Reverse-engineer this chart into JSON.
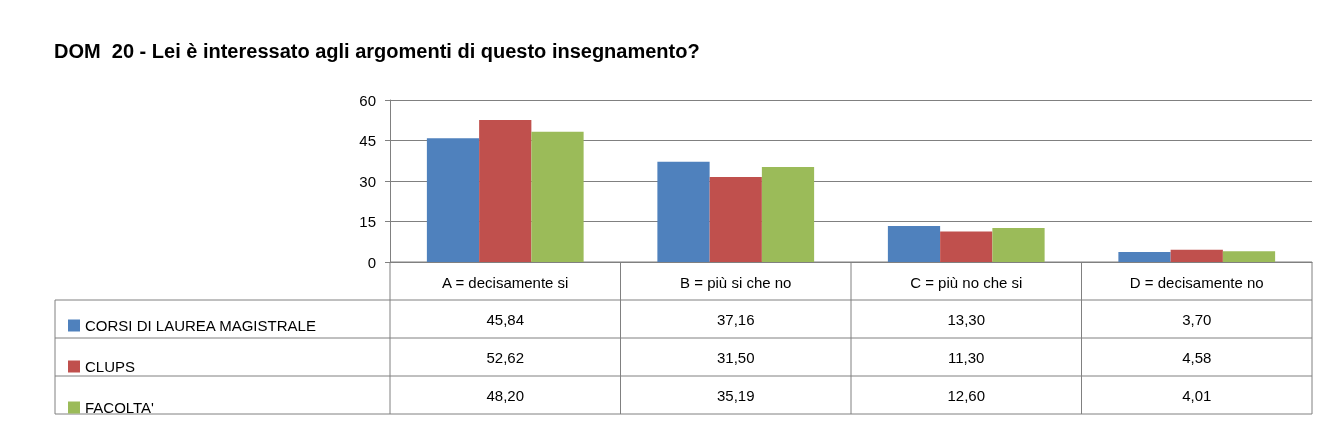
{
  "chart_data": {
    "type": "bar",
    "title": "DOM  20 - Lei è interessato agli argomenti di questo insegnamento?",
    "categories": [
      "A = decisamente si",
      "B = più si che no",
      "C = più no che si",
      "D = decisamente no"
    ],
    "series": [
      {
        "name": "CORSI DI LAUREA MAGISTRALE",
        "color": "#4f81bd",
        "values": [
          45.84,
          37.16,
          13.3,
          3.7
        ],
        "value_labels": [
          "45,84",
          "37,16",
          "13,30",
          "3,70"
        ]
      },
      {
        "name": "CLUPS",
        "color": "#c0504d",
        "values": [
          52.62,
          31.5,
          11.3,
          4.58
        ],
        "value_labels": [
          "52,62",
          "31,50",
          "11,30",
          "4,58"
        ]
      },
      {
        "name": "FACOLTA'",
        "color": "#9bbb59",
        "values": [
          48.2,
          35.19,
          12.6,
          4.01
        ],
        "value_labels": [
          "48,20",
          "35,19",
          "12,60",
          "4,01"
        ]
      }
    ],
    "ylim": [
      0,
      60
    ],
    "yticks": [
      0,
      15,
      30,
      45,
      60
    ],
    "grid": "y",
    "legend": "bottom left"
  }
}
